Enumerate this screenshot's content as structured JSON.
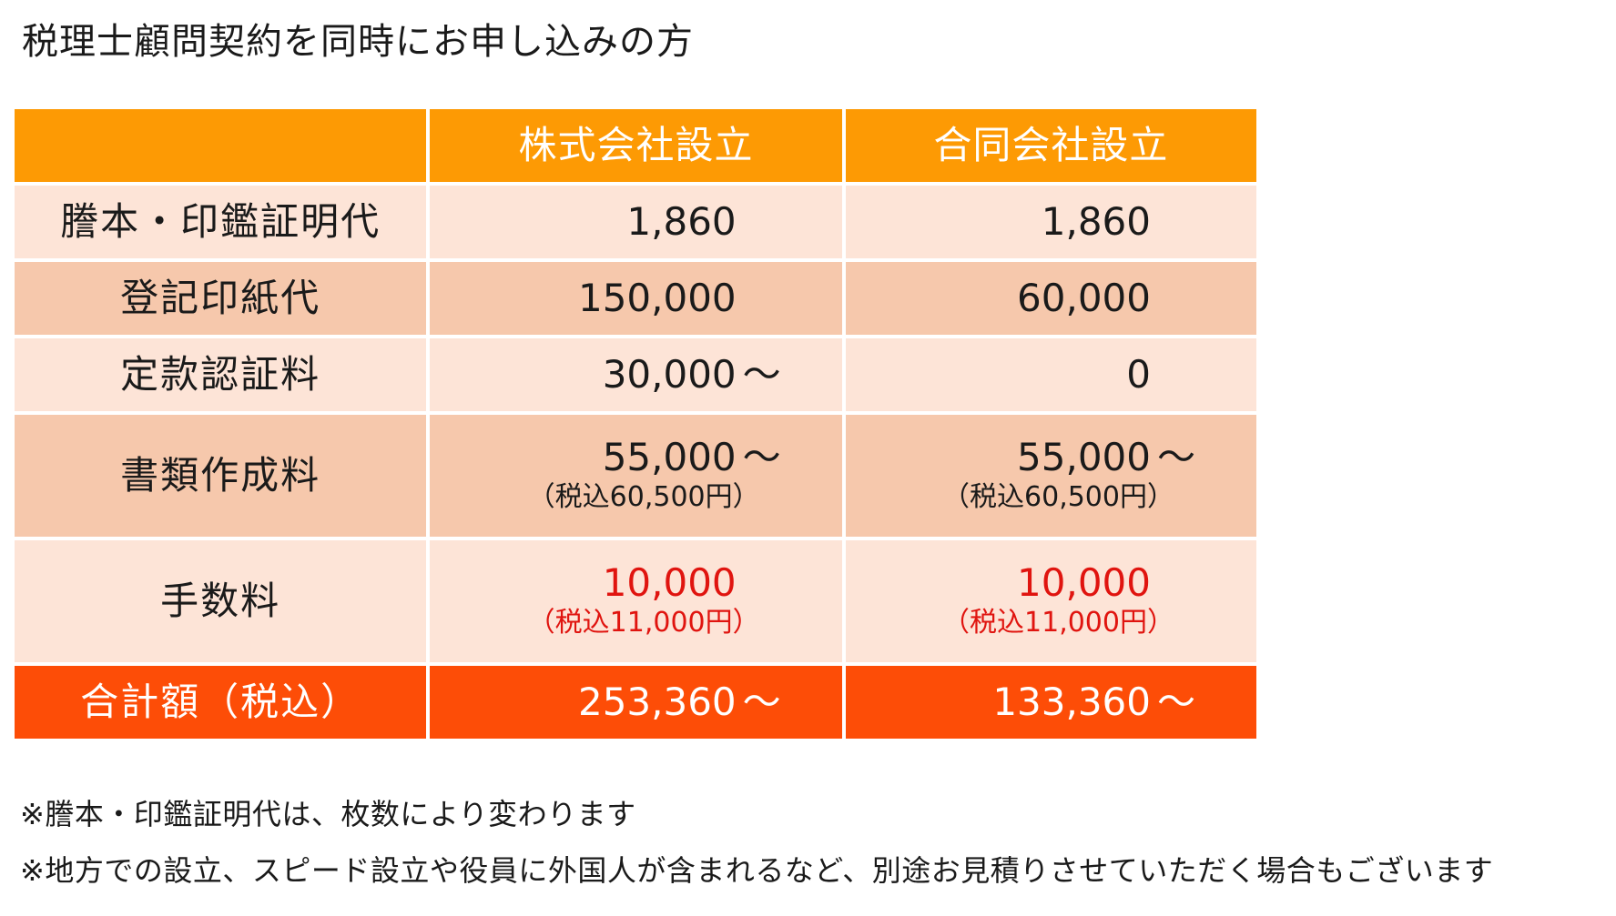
{
  "title": "税理士顧問契約を同時にお申し込みの方",
  "table": {
    "headers": [
      "",
      "株式会社設立",
      "合同会社設立"
    ],
    "rows": [
      {
        "label": "謄本・印鑑証明代",
        "kabushiki": {
          "main": "1,860",
          "tilde": "",
          "sub": ""
        },
        "godo": {
          "main": "1,860",
          "tilde": "",
          "sub": ""
        }
      },
      {
        "label": "登記印紙代",
        "kabushiki": {
          "main": "150,000",
          "tilde": "",
          "sub": ""
        },
        "godo": {
          "main": "60,000",
          "tilde": "",
          "sub": ""
        }
      },
      {
        "label": "定款認証料",
        "kabushiki": {
          "main": "30,000",
          "tilde": "～",
          "sub": ""
        },
        "godo": {
          "main": "0",
          "tilde": "",
          "sub": ""
        }
      },
      {
        "label": "書類作成料",
        "kabushiki": {
          "main": "55,000",
          "tilde": "～",
          "sub": "（税込60,500円）"
        },
        "godo": {
          "main": "55,000",
          "tilde": "～",
          "sub": "（税込60,500円）"
        }
      },
      {
        "label": "手数料",
        "kabushiki": {
          "main": "10,000",
          "tilde": "",
          "sub": "（税込11,000円）"
        },
        "godo": {
          "main": "10,000",
          "tilde": "",
          "sub": "（税込11,000円）"
        }
      }
    ],
    "total": {
      "label": "合計額（税込）",
      "kabushiki": {
        "main": "253,360",
        "tilde": "～"
      },
      "godo": {
        "main": "133,360",
        "tilde": "～"
      }
    }
  },
  "notes": [
    "※謄本・印鑑証明代は、枚数により変わります",
    "※地方での設立、スピード設立や役員に外国人が含まれるなど、別途お見積りさせていただく場合もございます"
  ],
  "colors": {
    "header": "#fd9a04",
    "row_light": "#fde4d7",
    "row_dark": "#f6c8ac",
    "total": "#fd4d07",
    "fee_red": "#e0140f"
  }
}
